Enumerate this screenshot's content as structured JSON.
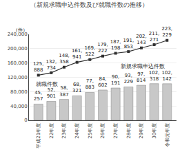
{
  "chart_data": {
    "type": "bar",
    "title": "（新規求職申込件数及び就職件数の推移）",
    "y_label": "（件）",
    "categories": [
      "平成21年度",
      "22年度",
      "23年度",
      "24年度",
      "25年度",
      "26年度",
      "27年度",
      "28年度",
      "29年度",
      "30年度",
      "令和元年度"
    ],
    "series": [
      {
        "name": "就職件数",
        "type": "bar",
        "color": "#c8c8c8",
        "values": [
          45257,
          52901,
          58387,
          68321,
          77883,
          84602,
          90191,
          93229,
          97814,
          102318,
          102142
        ],
        "value_labels": [
          "45,257",
          "52,901",
          "58,387",
          "68,321",
          "77,883",
          "84,602",
          "90,191",
          "93,229",
          "97,814",
          "102,318",
          "102,142"
        ]
      },
      {
        "name": "新規求職申込件数",
        "type": "line",
        "color": "#303030",
        "marker": "square",
        "line_style": "solid",
        "values": [
          125888,
          132734,
          148358,
          161941,
          169522,
          179222,
          187198,
          191853,
          202143,
          211271,
          223229
        ],
        "value_labels": [
          "125,888",
          "132,734",
          "148,358",
          "161,941",
          "169,522",
          "179,222",
          "187,198",
          "191,853",
          "202,143",
          "211,271",
          "223,229"
        ]
      }
    ],
    "ylim": [
      0,
      240000
    ],
    "yticks": [
      0,
      {
        "value": 40000,
        "label": "40,000"
      },
      {
        "value": 80000,
        "label": "80,000"
      },
      {
        "value": 120000,
        "label": "120,000"
      },
      {
        "value": 160000,
        "label": "160,000"
      },
      {
        "value": 200000,
        "label": "200,000"
      },
      {
        "value": 240000,
        "label": "240,000"
      }
    ],
    "grid": true,
    "data_labels": true
  }
}
